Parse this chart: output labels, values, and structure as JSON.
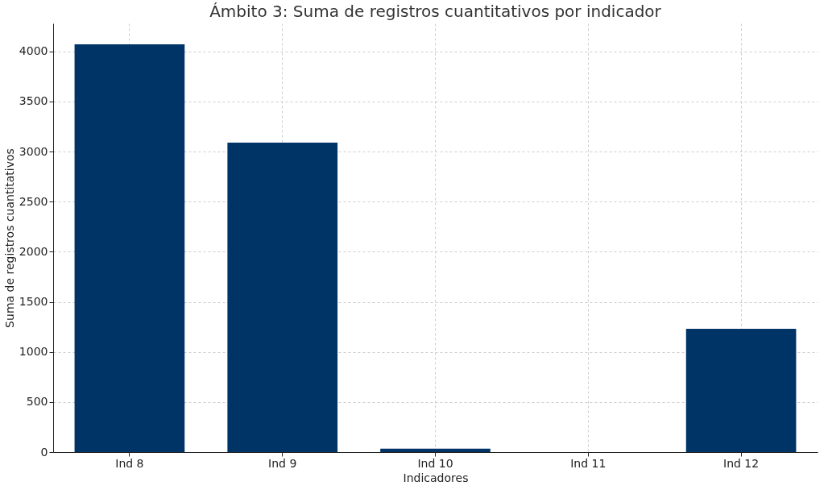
{
  "chart_data": {
    "type": "bar",
    "title": "Ámbito 3: Suma de registros cuantitativos por indicador",
    "xlabel": "Indicadores",
    "ylabel": "Suma de registros cuantitativos",
    "categories": [
      "Ind 8",
      "Ind 9",
      "Ind 10",
      "Ind 11",
      "Ind 12"
    ],
    "values": [
      4070,
      3090,
      35,
      0,
      1230
    ],
    "color": "#003366",
    "ylim": [
      0,
      4280
    ],
    "yticks": [
      0,
      500,
      1000,
      1500,
      2000,
      2500,
      3000,
      3500,
      4000
    ],
    "grid": true
  }
}
